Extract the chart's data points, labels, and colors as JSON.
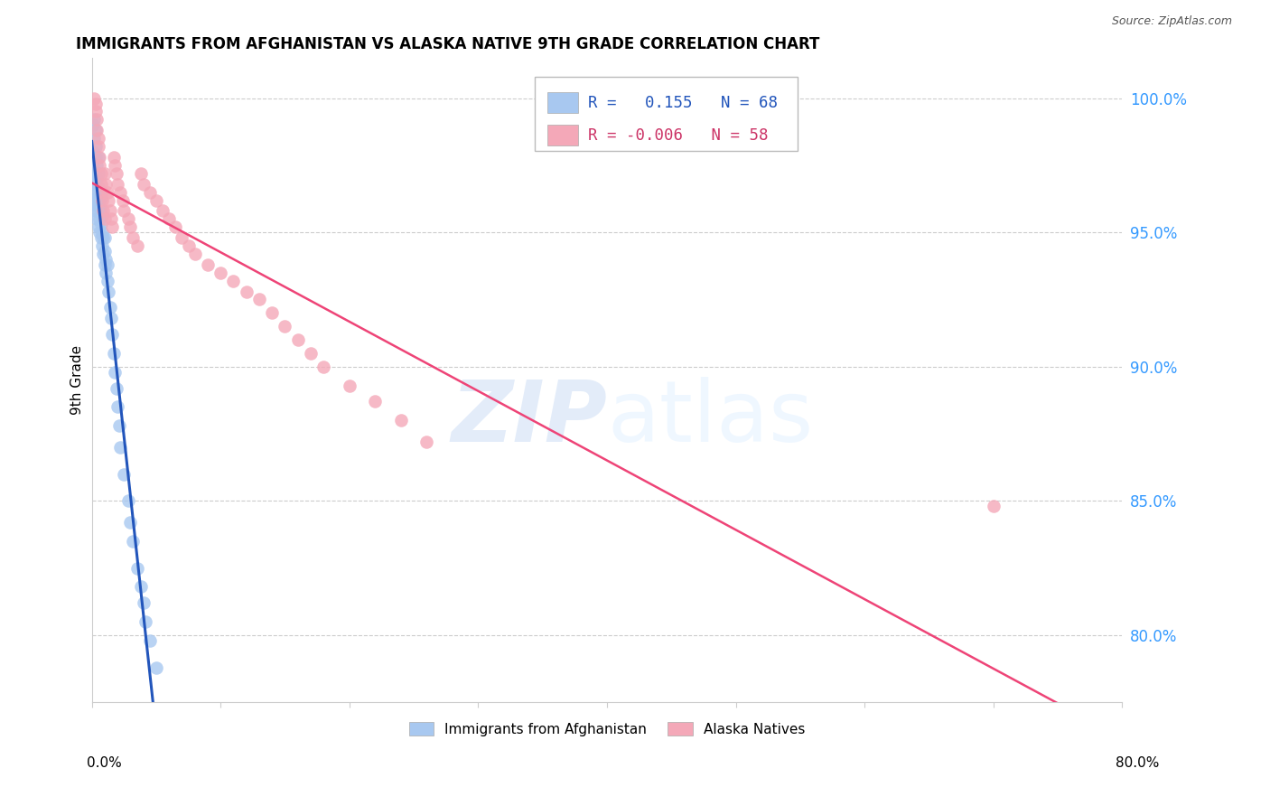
{
  "title": "IMMIGRANTS FROM AFGHANISTAN VS ALASKA NATIVE 9TH GRADE CORRELATION CHART",
  "source": "Source: ZipAtlas.com",
  "ylabel": "9th Grade",
  "ytick_values": [
    0.8,
    0.85,
    0.9,
    0.95,
    1.0
  ],
  "xlim": [
    0.0,
    0.8
  ],
  "ylim": [
    0.775,
    1.015
  ],
  "legend_blue_label": "Immigrants from Afghanistan",
  "legend_pink_label": "Alaska Natives",
  "r_blue": 0.155,
  "n_blue": 68,
  "r_pink": -0.006,
  "n_pink": 58,
  "blue_color": "#a8c8f0",
  "pink_color": "#f4a8b8",
  "blue_line_color": "#2255bb",
  "pink_line_color": "#ee4477",
  "blue_scatter_x": [
    0.001,
    0.001,
    0.001,
    0.001,
    0.002,
    0.002,
    0.002,
    0.002,
    0.002,
    0.002,
    0.003,
    0.003,
    0.003,
    0.003,
    0.003,
    0.003,
    0.003,
    0.004,
    0.004,
    0.004,
    0.004,
    0.004,
    0.005,
    0.005,
    0.005,
    0.005,
    0.005,
    0.005,
    0.006,
    0.006,
    0.006,
    0.006,
    0.007,
    0.007,
    0.007,
    0.007,
    0.008,
    0.008,
    0.008,
    0.009,
    0.009,
    0.01,
    0.01,
    0.01,
    0.011,
    0.011,
    0.012,
    0.012,
    0.013,
    0.014,
    0.015,
    0.016,
    0.017,
    0.018,
    0.019,
    0.02,
    0.021,
    0.022,
    0.025,
    0.028,
    0.03,
    0.032,
    0.035,
    0.038,
    0.04,
    0.042,
    0.045,
    0.05
  ],
  "blue_scatter_y": [
    0.968,
    0.975,
    0.98,
    0.99,
    0.962,
    0.968,
    0.972,
    0.978,
    0.985,
    0.992,
    0.958,
    0.963,
    0.968,
    0.972,
    0.978,
    0.982,
    0.988,
    0.955,
    0.96,
    0.965,
    0.97,
    0.975,
    0.952,
    0.958,
    0.962,
    0.967,
    0.972,
    0.978,
    0.95,
    0.955,
    0.96,
    0.965,
    0.948,
    0.953,
    0.958,
    0.963,
    0.945,
    0.95,
    0.956,
    0.942,
    0.948,
    0.938,
    0.943,
    0.948,
    0.935,
    0.94,
    0.932,
    0.938,
    0.928,
    0.922,
    0.918,
    0.912,
    0.905,
    0.898,
    0.892,
    0.885,
    0.878,
    0.87,
    0.86,
    0.85,
    0.842,
    0.835,
    0.825,
    0.818,
    0.812,
    0.805,
    0.798,
    0.788
  ],
  "pink_scatter_x": [
    0.002,
    0.003,
    0.003,
    0.004,
    0.004,
    0.005,
    0.005,
    0.006,
    0.006,
    0.007,
    0.007,
    0.008,
    0.008,
    0.009,
    0.01,
    0.01,
    0.011,
    0.012,
    0.013,
    0.014,
    0.015,
    0.016,
    0.017,
    0.018,
    0.019,
    0.02,
    0.022,
    0.024,
    0.025,
    0.028,
    0.03,
    0.032,
    0.035,
    0.038,
    0.04,
    0.045,
    0.05,
    0.055,
    0.06,
    0.065,
    0.07,
    0.075,
    0.08,
    0.09,
    0.1,
    0.11,
    0.12,
    0.13,
    0.14,
    0.15,
    0.16,
    0.17,
    0.18,
    0.2,
    0.22,
    0.24,
    0.26,
    0.7
  ],
  "pink_scatter_y": [
    1.0,
    0.998,
    0.995,
    0.992,
    0.988,
    0.985,
    0.982,
    0.978,
    0.975,
    0.972,
    0.968,
    0.965,
    0.962,
    0.958,
    0.955,
    0.972,
    0.968,
    0.965,
    0.962,
    0.958,
    0.955,
    0.952,
    0.978,
    0.975,
    0.972,
    0.968,
    0.965,
    0.962,
    0.958,
    0.955,
    0.952,
    0.948,
    0.945,
    0.972,
    0.968,
    0.965,
    0.962,
    0.958,
    0.955,
    0.952,
    0.948,
    0.945,
    0.942,
    0.938,
    0.935,
    0.932,
    0.928,
    0.925,
    0.92,
    0.915,
    0.91,
    0.905,
    0.9,
    0.893,
    0.887,
    0.88,
    0.872,
    0.848
  ]
}
